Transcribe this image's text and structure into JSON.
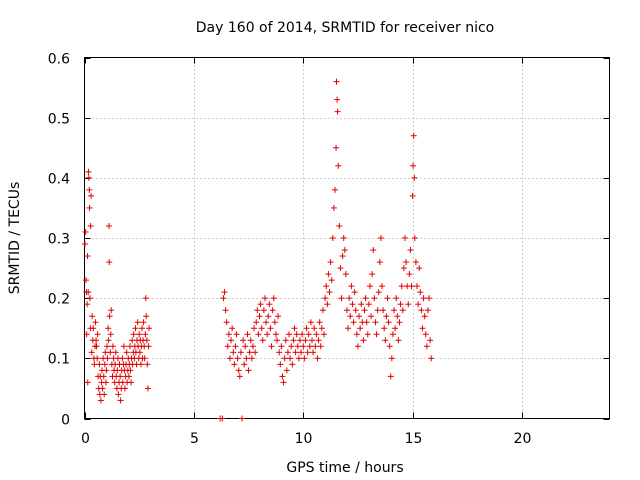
{
  "chart_data": {
    "type": "scatter",
    "title": "Day 160 of 2014, SRMTID for receiver nico",
    "xlabel": "GPS time / hours",
    "ylabel": "SRMTID / TECUs",
    "xlim": [
      0,
      24
    ],
    "ylim": [
      0,
      0.6
    ],
    "xticks": [
      0,
      5,
      10,
      15,
      20
    ],
    "xtick_labels": [
      "0",
      "5",
      "10",
      "15",
      "20"
    ],
    "yticks": [
      0,
      0.1,
      0.2,
      0.3,
      0.4,
      0.5,
      0.6
    ],
    "ytick_labels": [
      "0",
      "0.1",
      "0.2",
      "0.3",
      "0.4",
      "0.5",
      "0.6"
    ],
    "grid": true,
    "marker": "+",
    "color": "#e00000",
    "series": [
      {
        "name": "SRMTID",
        "points": [
          [
            0.02,
            0.29
          ],
          [
            0.05,
            0.31
          ],
          [
            0.07,
            0.23
          ],
          [
            0.09,
            0.21
          ],
          [
            0.1,
            0.14
          ],
          [
            0.12,
            0.19
          ],
          [
            0.14,
            0.27
          ],
          [
            0.15,
            0.06
          ],
          [
            0.17,
            0.21
          ],
          [
            0.18,
            0.41
          ],
          [
            0.2,
            0.4
          ],
          [
            0.22,
            0.38
          ],
          [
            0.23,
            0.35
          ],
          [
            0.25,
            0.2
          ],
          [
            0.27,
            0.15
          ],
          [
            0.28,
            0.32
          ],
          [
            0.3,
            0.37
          ],
          [
            0.33,
            0.11
          ],
          [
            0.35,
            0.17
          ],
          [
            0.38,
            0.13
          ],
          [
            0.4,
            0.15
          ],
          [
            0.43,
            0.1
          ],
          [
            0.45,
            0.09
          ],
          [
            0.48,
            0.12
          ],
          [
            0.5,
            0.16
          ],
          [
            0.53,
            0.13
          ],
          [
            0.55,
            0.12
          ],
          [
            0.58,
            0.1
          ],
          [
            0.6,
            0.14
          ],
          [
            0.62,
            0.07
          ],
          [
            0.65,
            0.05
          ],
          [
            0.68,
            0.09
          ],
          [
            0.7,
            0.04
          ],
          [
            0.72,
            0.07
          ],
          [
            0.75,
            0.03
          ],
          [
            0.78,
            0.06
          ],
          [
            0.8,
            0.08
          ],
          [
            0.83,
            0.05
          ],
          [
            0.85,
            0.1
          ],
          [
            0.88,
            0.07
          ],
          [
            0.9,
            0.04
          ],
          [
            0.93,
            0.09
          ],
          [
            0.95,
            0.11
          ],
          [
            0.98,
            0.06
          ],
          [
            1.0,
            0.08
          ],
          [
            1.03,
            0.12
          ],
          [
            1.05,
            0.1
          ],
          [
            1.08,
            0.15
          ],
          [
            1.1,
            0.13
          ],
          [
            1.12,
            0.32
          ],
          [
            1.13,
            0.26
          ],
          [
            1.15,
            0.17
          ],
          [
            1.18,
            0.11
          ],
          [
            1.2,
            0.14
          ],
          [
            1.22,
            0.18
          ],
          [
            1.25,
            0.09
          ],
          [
            1.28,
            0.07
          ],
          [
            1.3,
            0.12
          ],
          [
            1.33,
            0.1
          ],
          [
            1.35,
            0.08
          ],
          [
            1.38,
            0.06
          ],
          [
            1.4,
            0.09
          ],
          [
            1.43,
            0.11
          ],
          [
            1.45,
            0.07
          ],
          [
            1.48,
            0.05
          ],
          [
            1.5,
            0.08
          ],
          [
            1.53,
            0.1
          ],
          [
            1.55,
            0.04
          ],
          [
            1.58,
            0.06
          ],
          [
            1.6,
            0.09
          ],
          [
            1.63,
            0.07
          ],
          [
            1.65,
            0.03
          ],
          [
            1.68,
            0.05
          ],
          [
            1.7,
            0.08
          ],
          [
            1.73,
            0.1
          ],
          [
            1.75,
            0.06
          ],
          [
            1.78,
            0.09
          ],
          [
            1.8,
            0.12
          ],
          [
            1.83,
            0.08
          ],
          [
            1.85,
            0.05
          ],
          [
            1.88,
            0.07
          ],
          [
            1.9,
            0.09
          ],
          [
            1.93,
            0.11
          ],
          [
            1.95,
            0.06
          ],
          [
            1.98,
            0.08
          ],
          [
            2.0,
            0.1
          ],
          [
            2.03,
            0.07
          ],
          [
            2.05,
            0.09
          ],
          [
            2.08,
            0.12
          ],
          [
            2.1,
            0.08
          ],
          [
            2.13,
            0.06
          ],
          [
            2.15,
            0.1
          ],
          [
            2.18,
            0.13
          ],
          [
            2.2,
            0.09
          ],
          [
            2.23,
            0.11
          ],
          [
            2.25,
            0.14
          ],
          [
            2.28,
            0.1
          ],
          [
            2.3,
            0.12
          ],
          [
            2.33,
            0.15
          ],
          [
            2.35,
            0.11
          ],
          [
            2.38,
            0.09
          ],
          [
            2.4,
            0.13
          ],
          [
            2.43,
            0.16
          ],
          [
            2.45,
            0.12
          ],
          [
            2.48,
            0.1
          ],
          [
            2.5,
            0.14
          ],
          [
            2.53,
            0.11
          ],
          [
            2.55,
            0.13
          ],
          [
            2.58,
            0.09
          ],
          [
            2.6,
            0.12
          ],
          [
            2.63,
            0.15
          ],
          [
            2.65,
            0.1
          ],
          [
            2.68,
            0.13
          ],
          [
            2.7,
            0.16
          ],
          [
            2.73,
            0.12
          ],
          [
            2.75,
            0.1
          ],
          [
            2.78,
            0.14
          ],
          [
            2.8,
            0.2
          ],
          [
            2.82,
            0.17
          ],
          [
            2.85,
            0.13
          ],
          [
            2.87,
            0.09
          ],
          [
            2.9,
            0.05
          ],
          [
            2.93,
            0.12
          ],
          [
            2.95,
            0.15
          ],
          [
            6.2,
            0.0
          ],
          [
            6.3,
            0.0
          ],
          [
            6.35,
            0.2
          ],
          [
            6.4,
            0.21
          ],
          [
            6.45,
            0.18
          ],
          [
            6.5,
            0.16
          ],
          [
            6.55,
            0.12
          ],
          [
            6.6,
            0.14
          ],
          [
            6.65,
            0.1
          ],
          [
            6.7,
            0.13
          ],
          [
            6.75,
            0.15
          ],
          [
            6.8,
            0.11
          ],
          [
            6.85,
            0.09
          ],
          [
            6.9,
            0.12
          ],
          [
            6.95,
            0.14
          ],
          [
            7.0,
            0.1
          ],
          [
            7.05,
            0.08
          ],
          [
            7.1,
            0.07
          ],
          [
            7.15,
            0.11
          ],
          [
            7.2,
            0.0
          ],
          [
            7.25,
            0.13
          ],
          [
            7.3,
            0.09
          ],
          [
            7.35,
            0.12
          ],
          [
            7.4,
            0.1
          ],
          [
            7.45,
            0.14
          ],
          [
            7.5,
            0.08
          ],
          [
            7.55,
            0.11
          ],
          [
            7.6,
            0.13
          ],
          [
            7.65,
            0.1
          ],
          [
            7.7,
            0.12
          ],
          [
            7.75,
            0.15
          ],
          [
            7.8,
            0.11
          ],
          [
            7.85,
            0.16
          ],
          [
            7.9,
            0.18
          ],
          [
            7.95,
            0.14
          ],
          [
            8.0,
            0.17
          ],
          [
            8.05,
            0.19
          ],
          [
            8.1,
            0.15
          ],
          [
            8.15,
            0.13
          ],
          [
            8.2,
            0.18
          ],
          [
            8.25,
            0.2
          ],
          [
            8.3,
            0.16
          ],
          [
            8.35,
            0.14
          ],
          [
            8.4,
            0.17
          ],
          [
            8.45,
            0.19
          ],
          [
            8.5,
            0.15
          ],
          [
            8.55,
            0.12
          ],
          [
            8.6,
            0.18
          ],
          [
            8.65,
            0.2
          ],
          [
            8.7,
            0.16
          ],
          [
            8.75,
            0.14
          ],
          [
            8.8,
            0.13
          ],
          [
            8.85,
            0.17
          ],
          [
            8.9,
            0.11
          ],
          [
            8.95,
            0.09
          ],
          [
            9.0,
            0.12
          ],
          [
            9.05,
            0.07
          ],
          [
            9.1,
            0.06
          ],
          [
            9.15,
            0.1
          ],
          [
            9.2,
            0.13
          ],
          [
            9.25,
            0.08
          ],
          [
            9.3,
            0.11
          ],
          [
            9.35,
            0.14
          ],
          [
            9.4,
            0.1
          ],
          [
            9.45,
            0.12
          ],
          [
            9.5,
            0.09
          ],
          [
            9.55,
            0.13
          ],
          [
            9.6,
            0.15
          ],
          [
            9.65,
            0.11
          ],
          [
            9.7,
            0.14
          ],
          [
            9.75,
            0.12
          ],
          [
            9.8,
            0.1
          ],
          [
            9.85,
            0.13
          ],
          [
            9.9,
            0.11
          ],
          [
            9.95,
            0.14
          ],
          [
            10.0,
            0.12
          ],
          [
            10.05,
            0.1
          ],
          [
            10.1,
            0.13
          ],
          [
            10.15,
            0.15
          ],
          [
            10.2,
            0.11
          ],
          [
            10.25,
            0.14
          ],
          [
            10.3,
            0.12
          ],
          [
            10.35,
            0.16
          ],
          [
            10.4,
            0.13
          ],
          [
            10.45,
            0.11
          ],
          [
            10.5,
            0.15
          ],
          [
            10.55,
            0.12
          ],
          [
            10.6,
            0.14
          ],
          [
            10.65,
            0.1
          ],
          [
            10.7,
            0.13
          ],
          [
            10.75,
            0.16
          ],
          [
            10.8,
            0.12
          ],
          [
            10.85,
            0.15
          ],
          [
            10.9,
            0.18
          ],
          [
            10.95,
            0.14
          ],
          [
            11.0,
            0.2
          ],
          [
            11.05,
            0.22
          ],
          [
            11.1,
            0.19
          ],
          [
            11.15,
            0.24
          ],
          [
            11.2,
            0.21
          ],
          [
            11.25,
            0.26
          ],
          [
            11.3,
            0.23
          ],
          [
            11.35,
            0.3
          ],
          [
            11.4,
            0.35
          ],
          [
            11.45,
            0.38
          ],
          [
            11.5,
            0.45
          ],
          [
            11.52,
            0.56
          ],
          [
            11.55,
            0.53
          ],
          [
            11.57,
            0.51
          ],
          [
            11.6,
            0.42
          ],
          [
            11.65,
            0.32
          ],
          [
            11.7,
            0.25
          ],
          [
            11.75,
            0.2
          ],
          [
            11.8,
            0.27
          ],
          [
            11.85,
            0.3
          ],
          [
            11.9,
            0.28
          ],
          [
            11.95,
            0.24
          ],
          [
            12.0,
            0.18
          ],
          [
            12.05,
            0.15
          ],
          [
            12.1,
            0.2
          ],
          [
            12.15,
            0.17
          ],
          [
            12.2,
            0.22
          ],
          [
            12.25,
            0.19
          ],
          [
            12.3,
            0.16
          ],
          [
            12.35,
            0.21
          ],
          [
            12.4,
            0.18
          ],
          [
            12.45,
            0.14
          ],
          [
            12.5,
            0.12
          ],
          [
            12.55,
            0.17
          ],
          [
            12.6,
            0.15
          ],
          [
            12.65,
            0.19
          ],
          [
            12.7,
            0.16
          ],
          [
            12.75,
            0.13
          ],
          [
            12.8,
            0.18
          ],
          [
            12.85,
            0.2
          ],
          [
            12.9,
            0.16
          ],
          [
            12.95,
            0.14
          ],
          [
            13.0,
            0.19
          ],
          [
            13.05,
            0.22
          ],
          [
            13.1,
            0.17
          ],
          [
            13.15,
            0.24
          ],
          [
            13.2,
            0.28
          ],
          [
            13.25,
            0.2
          ],
          [
            13.3,
            0.16
          ],
          [
            13.35,
            0.14
          ],
          [
            13.4,
            0.18
          ],
          [
            13.45,
            0.21
          ],
          [
            13.5,
            0.26
          ],
          [
            13.55,
            0.3
          ],
          [
            13.6,
            0.22
          ],
          [
            13.65,
            0.18
          ],
          [
            13.7,
            0.15
          ],
          [
            13.75,
            0.13
          ],
          [
            13.8,
            0.17
          ],
          [
            13.85,
            0.2
          ],
          [
            13.9,
            0.16
          ],
          [
            13.95,
            0.12
          ],
          [
            14.0,
            0.07
          ],
          [
            14.05,
            0.1
          ],
          [
            14.1,
            0.14
          ],
          [
            14.15,
            0.18
          ],
          [
            14.2,
            0.15
          ],
          [
            14.25,
            0.2
          ],
          [
            14.3,
            0.17
          ],
          [
            14.35,
            0.13
          ],
          [
            14.4,
            0.16
          ],
          [
            14.45,
            0.19
          ],
          [
            14.5,
            0.22
          ],
          [
            14.55,
            0.18
          ],
          [
            14.6,
            0.25
          ],
          [
            14.65,
            0.3
          ],
          [
            14.7,
            0.26
          ],
          [
            14.75,
            0.22
          ],
          [
            14.8,
            0.19
          ],
          [
            14.85,
            0.24
          ],
          [
            14.9,
            0.28
          ],
          [
            14.95,
            0.22
          ],
          [
            15.0,
            0.37
          ],
          [
            15.02,
            0.42
          ],
          [
            15.05,
            0.47
          ],
          [
            15.08,
            0.4
          ],
          [
            15.1,
            0.3
          ],
          [
            15.15,
            0.26
          ],
          [
            15.2,
            0.22
          ],
          [
            15.25,
            0.19
          ],
          [
            15.3,
            0.25
          ],
          [
            15.35,
            0.21
          ],
          [
            15.4,
            0.18
          ],
          [
            15.45,
            0.15
          ],
          [
            15.5,
            0.2
          ],
          [
            15.55,
            0.17
          ],
          [
            15.6,
            0.14
          ],
          [
            15.65,
            0.12
          ],
          [
            15.7,
            0.18
          ],
          [
            15.75,
            0.2
          ],
          [
            15.8,
            0.13
          ],
          [
            15.85,
            0.1
          ]
        ]
      }
    ]
  }
}
